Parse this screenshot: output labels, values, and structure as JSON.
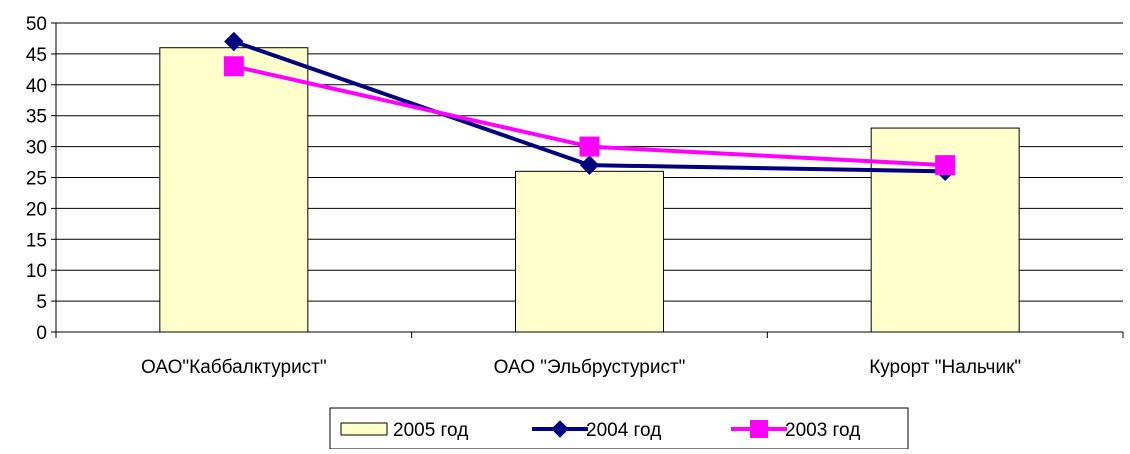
{
  "chart_data": {
    "type": "bar",
    "title": "",
    "xlabel": "",
    "ylabel": "",
    "categories": [
      "ОАО\"Каббалктурист\"",
      "ОАО \"Эльбрустурист\"",
      "Курорт \"Нальчик\""
    ],
    "ylim": [
      0,
      50
    ],
    "yticks": [
      0,
      5,
      10,
      15,
      20,
      25,
      30,
      35,
      40,
      45,
      50
    ],
    "grid": "horizontal",
    "legend_position": "bottom",
    "series": [
      {
        "name": "2005 год",
        "type": "bar",
        "values": [
          46,
          26,
          33
        ],
        "color": "#FFFFCC",
        "marker": ""
      },
      {
        "name": "2004 год",
        "type": "line",
        "values": [
          47,
          27,
          26
        ],
        "color": "#000080",
        "marker": "diamond"
      },
      {
        "name": "2003 год",
        "type": "line",
        "values": [
          43,
          30,
          27
        ],
        "color": "#FF00FF",
        "marker": "square"
      }
    ]
  }
}
